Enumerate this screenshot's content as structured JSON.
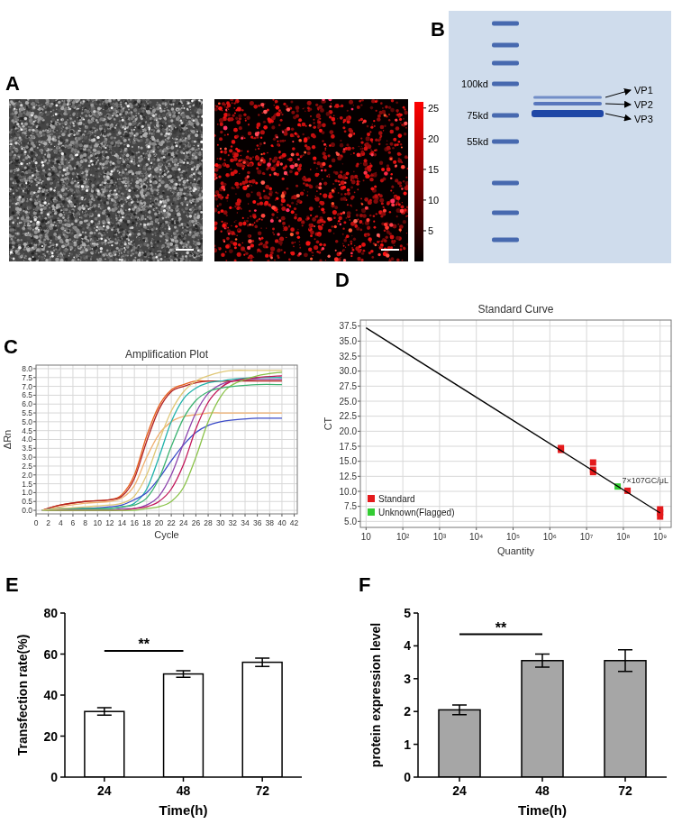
{
  "panel_labels": [
    "A",
    "B",
    "C",
    "D",
    "E",
    "F"
  ],
  "images": {
    "colorbar": {
      "range": [
        0,
        26
      ],
      "ticks": [
        5,
        10,
        15,
        20,
        25
      ]
    }
  },
  "gel": {
    "ladder_labels": [
      "100kd",
      "75kd",
      "55kd"
    ],
    "band_labels": [
      "VP1",
      "VP2",
      "VP3"
    ]
  },
  "chart_data": [
    {
      "type": "line",
      "title": "Amplification Plot",
      "x_label": "Cycle",
      "y_label": "ΔRn",
      "grid": true,
      "x": [
        1,
        4,
        8,
        12,
        14,
        16,
        18,
        20,
        22,
        24,
        26,
        28,
        30,
        32,
        36,
        40
      ],
      "series": [
        {
          "color": "#e8601c",
          "values": [
            0,
            0.3,
            0.5,
            0.6,
            0.9,
            2.0,
            4.2,
            5.9,
            6.8,
            7.1,
            7.3,
            7.3,
            7.3,
            7.3,
            7.4,
            7.4
          ]
        },
        {
          "color": "#b22222",
          "values": [
            0,
            0.3,
            0.5,
            0.6,
            0.8,
            1.8,
            3.9,
            5.7,
            6.7,
            7.0,
            7.2,
            7.3,
            7.3,
            7.3,
            7.3,
            7.3
          ]
        },
        {
          "color": "#f0b070",
          "values": [
            0,
            0.2,
            0.4,
            0.5,
            0.7,
            1.4,
            3.0,
            4.3,
            5.0,
            5.3,
            5.4,
            5.5,
            5.5,
            5.5,
            5.5,
            5.5
          ]
        },
        {
          "color": "#20b2aa",
          "values": [
            0,
            0.1,
            0.1,
            0.1,
            0.2,
            0.4,
            1.2,
            3.0,
            5.0,
            6.3,
            6.9,
            7.2,
            7.3,
            7.4,
            7.5,
            7.5
          ]
        },
        {
          "color": "#3b4bc8",
          "values": [
            0,
            0.1,
            0.1,
            0.2,
            0.3,
            0.6,
            1.0,
            1.8,
            2.8,
            3.7,
            4.4,
            4.8,
            5.0,
            5.1,
            5.2,
            5.2
          ]
        },
        {
          "color": "#8e44ad",
          "values": [
            0,
            0,
            0,
            0,
            0.1,
            0.1,
            0.3,
            0.8,
            2.0,
            3.8,
            5.5,
            6.6,
            7.1,
            7.3,
            7.4,
            7.4
          ]
        },
        {
          "color": "#c2185b",
          "values": [
            0,
            0,
            0,
            0,
            0,
            0.1,
            0.2,
            0.5,
            1.2,
            2.6,
            4.6,
            6.1,
            6.9,
            7.3,
            7.5,
            7.6
          ]
        },
        {
          "color": "#8bc34a",
          "values": [
            0,
            0,
            0,
            0,
            0,
            0,
            0.1,
            0.2,
            0.5,
            1.3,
            3.0,
            5.0,
            6.4,
            7.1,
            7.6,
            7.8
          ]
        },
        {
          "color": "#3cb371",
          "values": [
            0,
            0.1,
            0.1,
            0.1,
            0.2,
            0.3,
            0.7,
            1.8,
            3.6,
            5.2,
            6.2,
            6.7,
            6.9,
            7.0,
            7.1,
            7.1
          ]
        },
        {
          "color": "#e0c878",
          "values": [
            0,
            0.1,
            0.2,
            0.3,
            0.4,
            0.8,
            2.0,
            3.9,
            5.6,
            6.7,
            7.3,
            7.6,
            7.8,
            7.9,
            7.9,
            7.9
          ]
        }
      ],
      "xlim": [
        0,
        42.5
      ],
      "xticks": [
        0,
        2,
        4,
        6,
        8,
        10,
        12,
        14,
        16,
        18,
        20,
        22,
        24,
        26,
        28,
        30,
        32,
        34,
        36,
        38,
        40,
        42
      ],
      "ylim": [
        -0.2,
        8.2
      ],
      "yticks": [
        {
          "value": 0,
          "label": "0.0"
        },
        0.5,
        {
          "value": 1,
          "label": "1.0"
        },
        1.5,
        {
          "value": 2,
          "label": "2.0"
        },
        2.5,
        {
          "value": 3,
          "label": "3.0"
        },
        3.5,
        {
          "value": 4,
          "label": "4.0"
        },
        4.5,
        {
          "value": 5,
          "label": "5.0"
        },
        5.5,
        {
          "value": 6,
          "label": "6.0"
        },
        6.5,
        {
          "value": 7,
          "label": "7.0"
        },
        7.5,
        {
          "value": 8,
          "label": "8.0"
        }
      ]
    },
    {
      "type": "scatter",
      "title": "Standard Curve",
      "x_label": "Quantity",
      "y_label": "CT",
      "grid": true,
      "log": "x",
      "legend": "lower left",
      "series": [
        {
          "name": "Standard",
          "color": "#e41a1c",
          "marker": "square",
          "x": [
            2000000,
            2000000,
            15000000,
            15000000,
            15000000,
            130000000,
            1000000000,
            1000000000,
            1000000000
          ],
          "values": [
            17.2,
            16.9,
            14.8,
            13.6,
            13.2,
            10.1,
            7.0,
            6.5,
            5.8
          ]
        },
        {
          "name": "Unknown(Flagged)",
          "color": "#33cc33",
          "marker": "square",
          "x": [
            70000000
          ],
          "values": [
            10.8
          ]
        },
        {
          "type": "line",
          "color": "#000000",
          "x": [
            10,
            1000000000
          ],
          "values": [
            37.2,
            6.4
          ]
        }
      ],
      "annotations": [
        {
          "text": "7×107GC/μL",
          "x": 70000000,
          "y": 10.8
        }
      ],
      "xlim": [
        7,
        2000000000
      ],
      "xticks": [
        10,
        {
          "value": 100,
          "label": "10²"
        },
        {
          "value": 1000,
          "label": "10³"
        },
        {
          "value": 10000,
          "label": "10⁴"
        },
        {
          "value": 100000,
          "label": "10⁵"
        },
        {
          "value": 1000000,
          "label": "10⁶"
        },
        {
          "value": 10000000,
          "label": "10⁷"
        },
        {
          "value": 100000000,
          "label": "10⁸"
        },
        {
          "value": 1000000000,
          "label": "10⁹"
        }
      ],
      "ylim": [
        4,
        38.5
      ],
      "yticks": [
        {
          "value": 5,
          "label": "5.0"
        },
        7.5,
        {
          "value": 10,
          "label": "10.0"
        },
        12.5,
        {
          "value": 15,
          "label": "15.0"
        },
        17.5,
        {
          "value": 20,
          "label": "20.0"
        },
        22.5,
        {
          "value": 25,
          "label": "25.0"
        },
        27.5,
        {
          "value": 30,
          "label": "30.0"
        },
        32.5,
        {
          "value": 35,
          "label": "35.0"
        },
        37.5
      ]
    },
    {
      "type": "bar",
      "x_label": "Time(h)",
      "y_label": "Transfection rate(%)",
      "color": "#ffffff",
      "categories": [
        "24",
        "48",
        "72"
      ],
      "values": [
        32,
        50.3,
        56
      ],
      "errors": [
        1.8,
        1.6,
        2.0
      ],
      "ylim": [
        0,
        80
      ],
      "yticks": [
        0,
        20,
        40,
        60,
        80
      ],
      "annotations": [
        {
          "text": "**",
          "between": [
            "24",
            "48"
          ]
        }
      ]
    },
    {
      "type": "bar",
      "x_label": "Time(h)",
      "y_label": "protein expression level",
      "color": "#a6a6a6",
      "categories": [
        "24",
        "48",
        "72"
      ],
      "values": [
        2.05,
        3.55,
        3.55
      ],
      "errors": [
        0.15,
        0.2,
        0.33
      ],
      "ylim": [
        0,
        5
      ],
      "yticks": [
        0,
        1,
        2,
        3,
        4,
        5
      ],
      "annotations": [
        {
          "text": "**",
          "between": [
            "24",
            "48"
          ]
        }
      ]
    }
  ]
}
